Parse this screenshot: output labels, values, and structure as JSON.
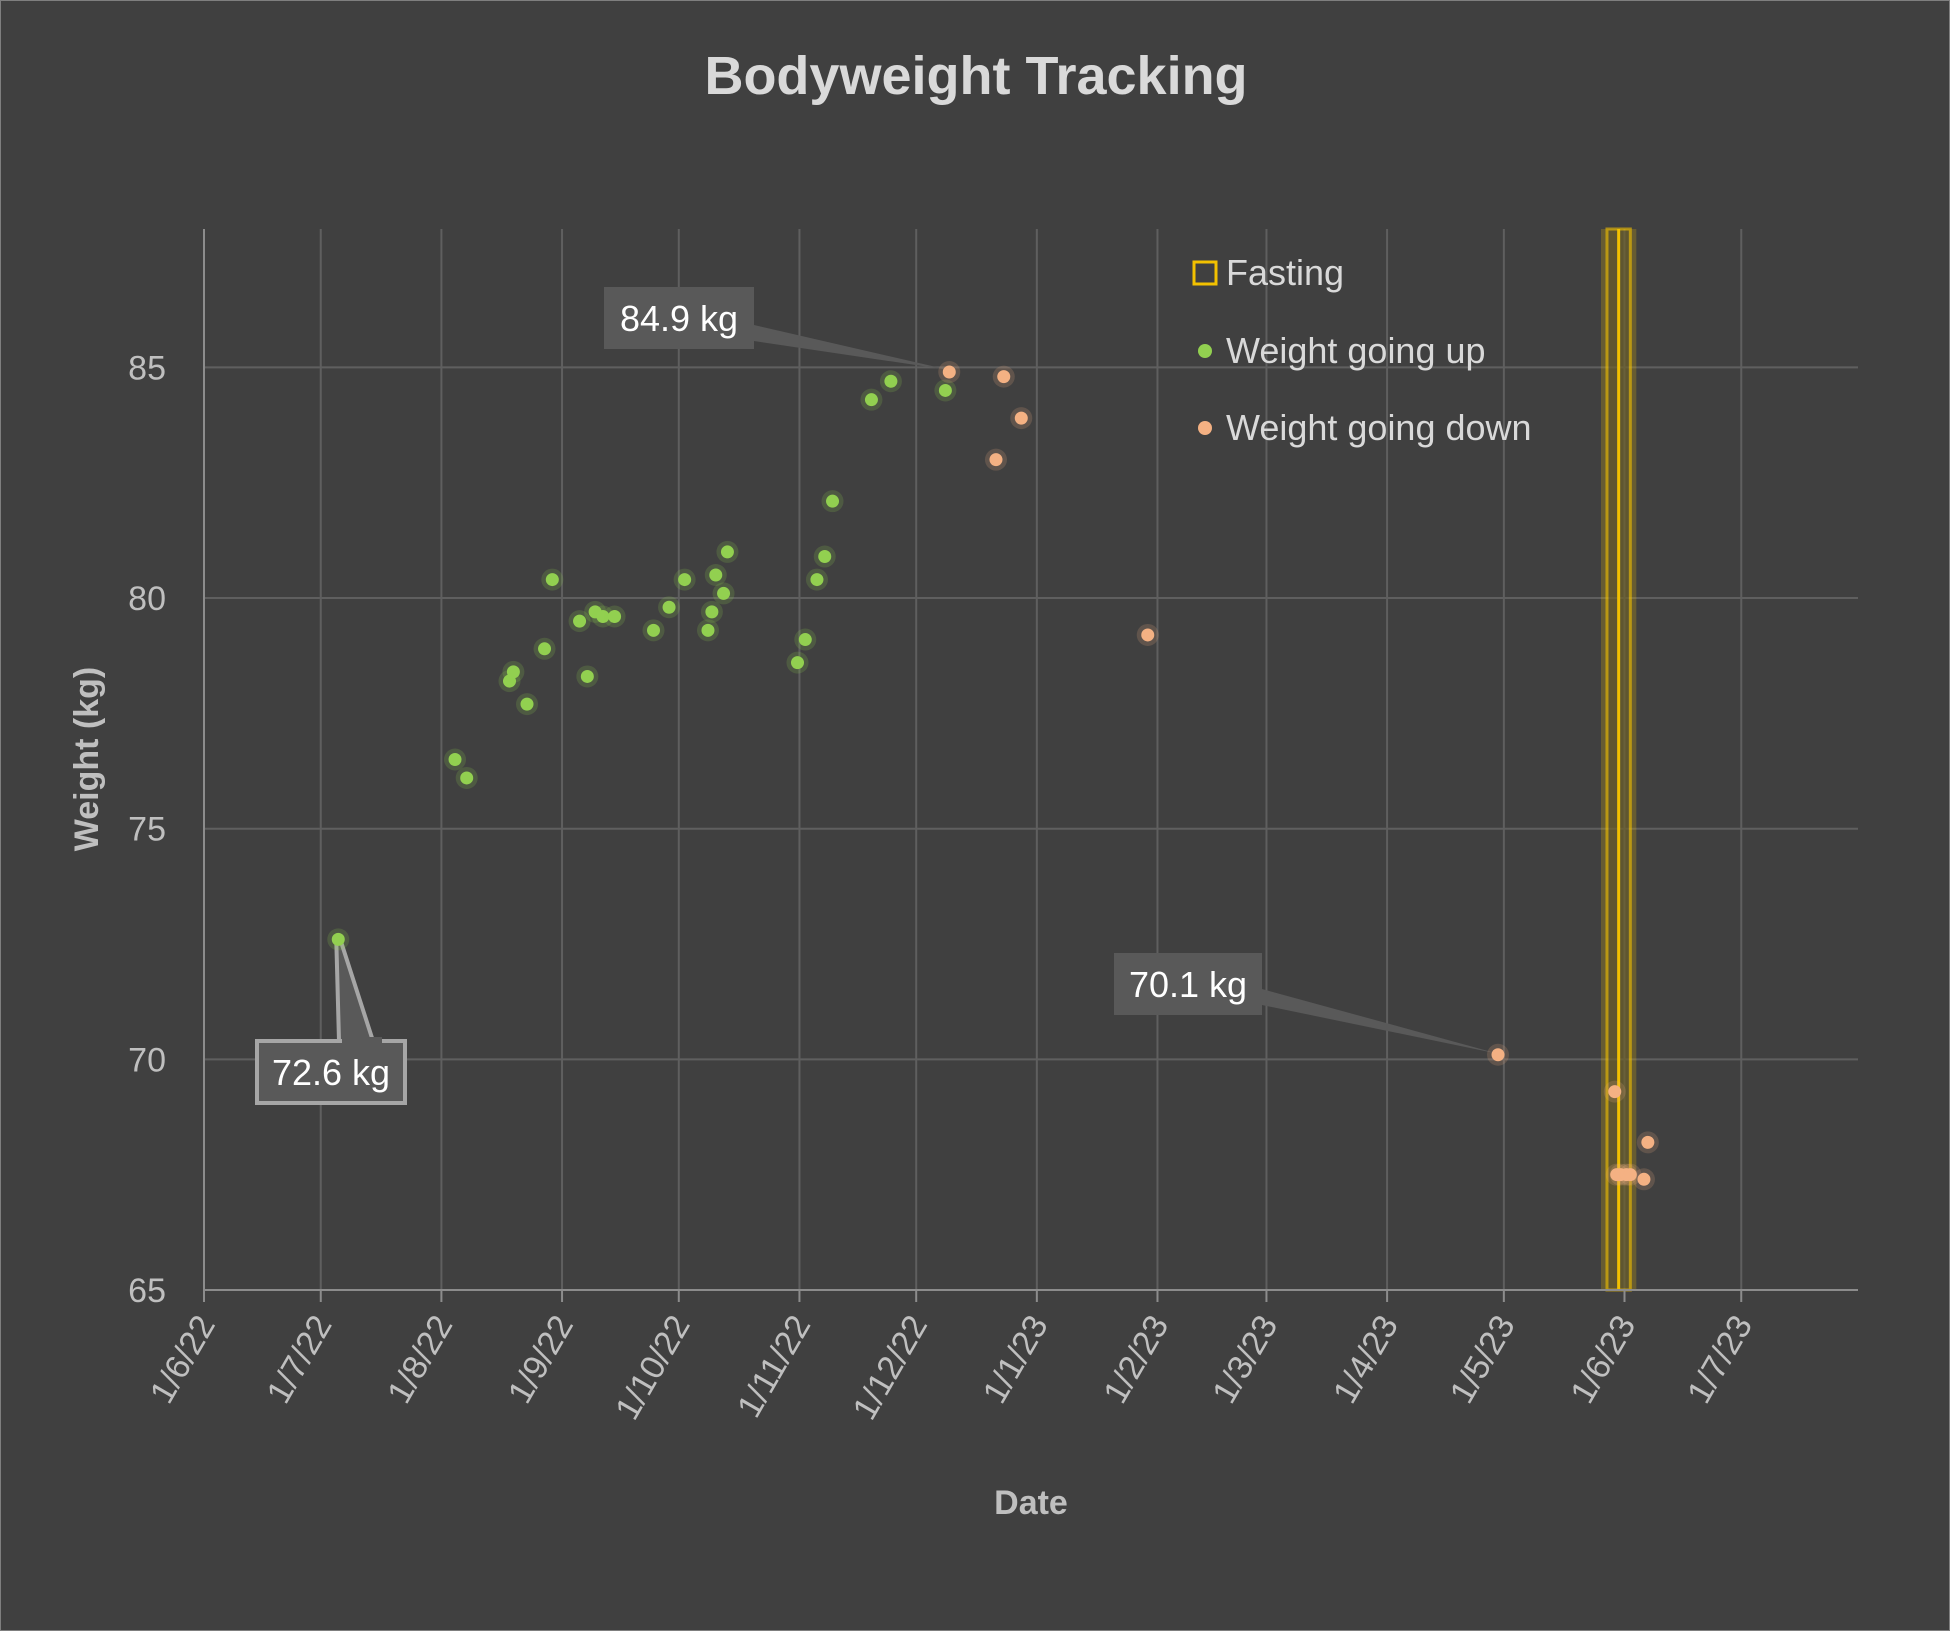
{
  "chart_data": {
    "type": "scatter",
    "title": "Bodyweight Tracking",
    "xlabel": "Date",
    "ylabel": "Weight (kg)",
    "ylim": [
      65,
      88
    ],
    "yticks": [
      65,
      70,
      75,
      80,
      85
    ],
    "x_ticks": [
      {
        "label": "1/6/22",
        "day": 0
      },
      {
        "label": "1/7/22",
        "day": 30
      },
      {
        "label": "1/8/22",
        "day": 61
      },
      {
        "label": "1/9/22",
        "day": 92
      },
      {
        "label": "1/10/22",
        "day": 122
      },
      {
        "label": "1/11/22",
        "day": 153
      },
      {
        "label": "1/12/22",
        "day": 183
      },
      {
        "label": "1/1/23",
        "day": 214
      },
      {
        "label": "1/2/23",
        "day": 245
      },
      {
        "label": "1/3/23",
        "day": 273
      },
      {
        "label": "1/4/23",
        "day": 304
      },
      {
        "label": "1/5/23",
        "day": 334
      },
      {
        "label": "1/6/23",
        "day": 365
      },
      {
        "label": "1/7/23",
        "day": 395
      }
    ],
    "xlim_days": [
      0,
      425
    ],
    "x_unit": "days since 1/6/22",
    "grid": true,
    "legend_position": "top-right",
    "fasting_band": {
      "name": "Fasting",
      "x_days": [
        360.5,
        366.5
      ],
      "color": "#f2c100"
    },
    "series": [
      {
        "name": "Weight going up",
        "color": "#92d050",
        "points": [
          [
            34.5,
            72.6
          ],
          [
            64.5,
            76.5
          ],
          [
            67.5,
            76.1
          ],
          [
            78.5,
            78.2
          ],
          [
            79.5,
            78.4
          ],
          [
            83,
            77.7
          ],
          [
            87.5,
            78.9
          ],
          [
            89.5,
            80.4
          ],
          [
            96.5,
            79.5
          ],
          [
            98.5,
            78.3
          ],
          [
            100.5,
            79.7
          ],
          [
            102.5,
            79.6
          ],
          [
            105.5,
            79.6
          ],
          [
            115.5,
            79.3
          ],
          [
            119.5,
            79.8
          ],
          [
            123.5,
            80.4
          ],
          [
            129.5,
            79.3
          ],
          [
            130.5,
            79.7
          ],
          [
            131.5,
            80.5
          ],
          [
            133.5,
            80.1
          ],
          [
            134.5,
            81.0
          ],
          [
            152.5,
            78.6
          ],
          [
            154.5,
            79.1
          ],
          [
            157.5,
            80.4
          ],
          [
            159.5,
            80.9
          ],
          [
            161.5,
            82.1
          ],
          [
            171.5,
            84.3
          ],
          [
            176.5,
            84.7
          ],
          [
            190.5,
            84.5
          ]
        ]
      },
      {
        "name": "Weight going down",
        "color": "#f4b183",
        "points": [
          [
            191.5,
            84.9
          ],
          [
            205.5,
            84.8
          ],
          [
            203.5,
            83.0
          ],
          [
            210,
            83.9
          ],
          [
            242.5,
            79.2
          ],
          [
            332.5,
            70.1
          ],
          [
            362.5,
            69.3
          ],
          [
            363,
            67.5
          ],
          [
            364,
            67.5
          ],
          [
            365.5,
            67.5
          ],
          [
            366.5,
            67.5
          ],
          [
            370,
            67.4
          ],
          [
            371,
            68.2
          ]
        ]
      }
    ],
    "annotations": [
      {
        "text": "72.6 kg",
        "series": 0,
        "point": 0
      },
      {
        "text": "84.9 kg",
        "series": 1,
        "point": 0
      },
      {
        "text": "70.1 kg",
        "series": 1,
        "point": 5
      }
    ]
  }
}
